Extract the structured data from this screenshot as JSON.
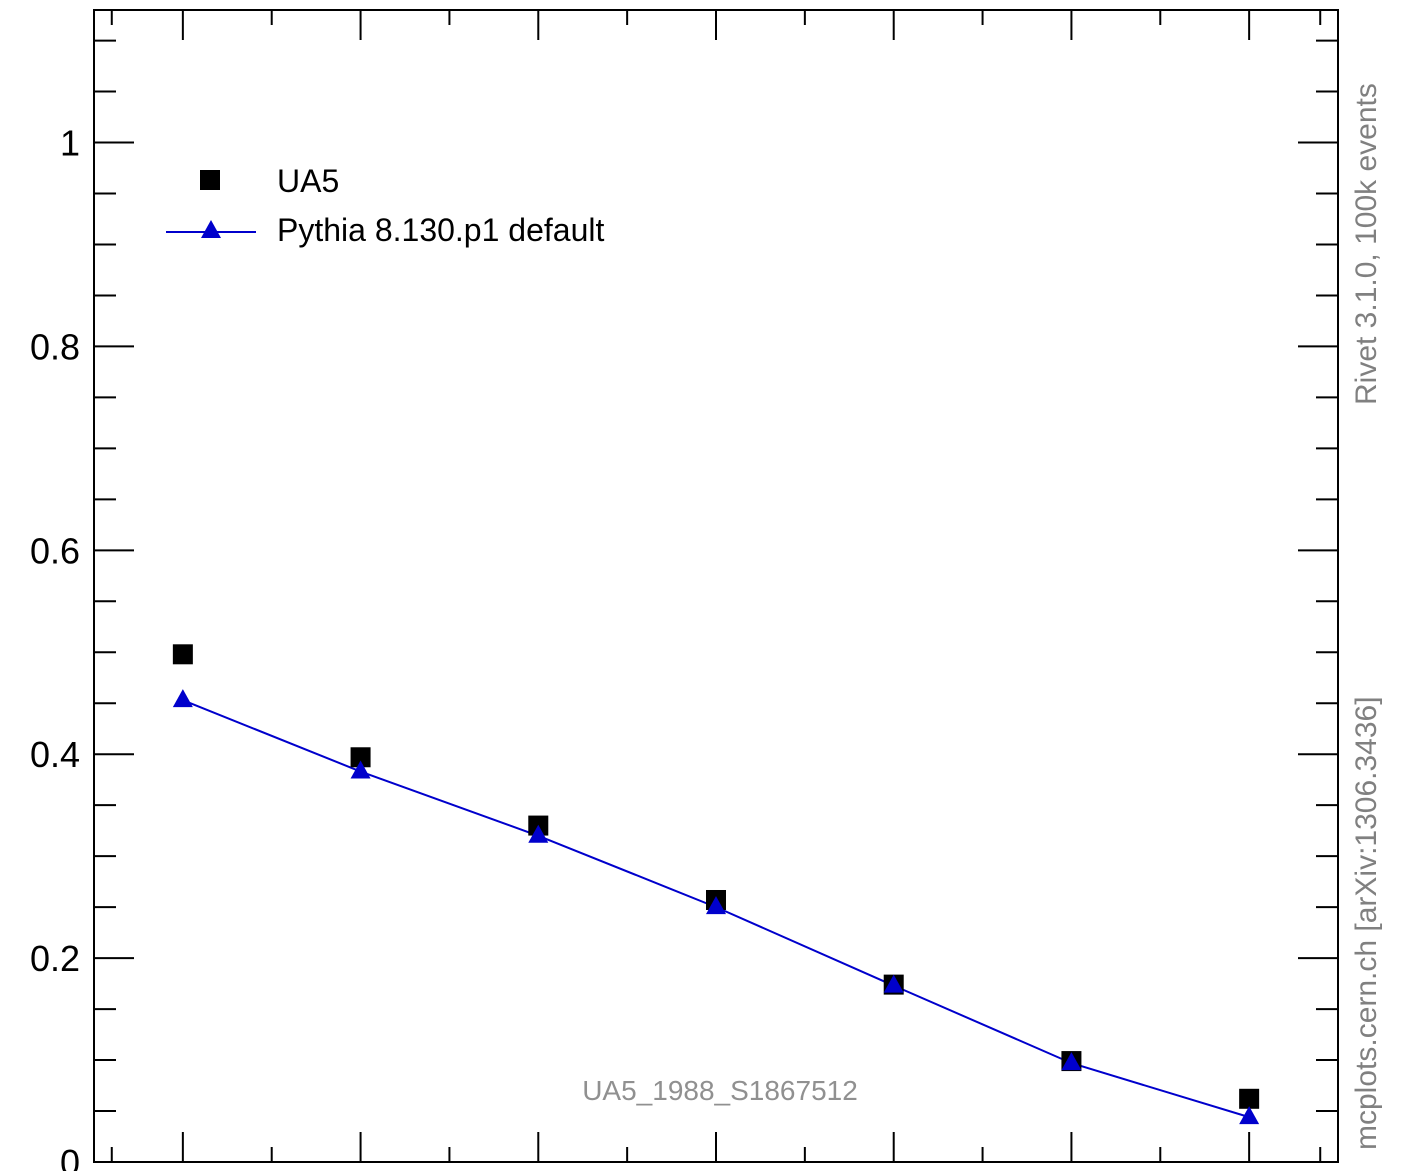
{
  "chart_data": {
    "type": "scatter",
    "title": "",
    "xlabel": "",
    "ylabel": "",
    "x": [
      1,
      2,
      3,
      4,
      5,
      6,
      7
    ],
    "xlim": [
      0.5,
      7.5
    ],
    "ylim": [
      0,
      1.13
    ],
    "y_ticks_major": [
      0,
      0.2,
      0.4,
      0.6,
      0.8,
      1
    ],
    "y_tick_labels": [
      "0",
      "0.2",
      "0.4",
      "0.6",
      "0.8",
      "1"
    ],
    "grid": false,
    "legend_position": "top-left",
    "series": [
      {
        "name": "UA5",
        "marker": "square",
        "color": "#000000",
        "values": [
          0.498,
          0.397,
          0.33,
          0.257,
          0.174,
          0.099,
          0.062
        ]
      },
      {
        "name": "Pythia 8.130.p1 default",
        "marker": "triangle",
        "line": true,
        "color": "#0000cc",
        "values": [
          0.453,
          0.383,
          0.32,
          0.25,
          0.173,
          0.097,
          0.044
        ]
      }
    ],
    "annotations": {
      "analysis_id": "UA5_1988_S1867512",
      "side_top": "Rivet 3.1.0,  100k events",
      "side_bottom": "mcplots.cern.ch [arXiv:1306.3436]"
    }
  }
}
